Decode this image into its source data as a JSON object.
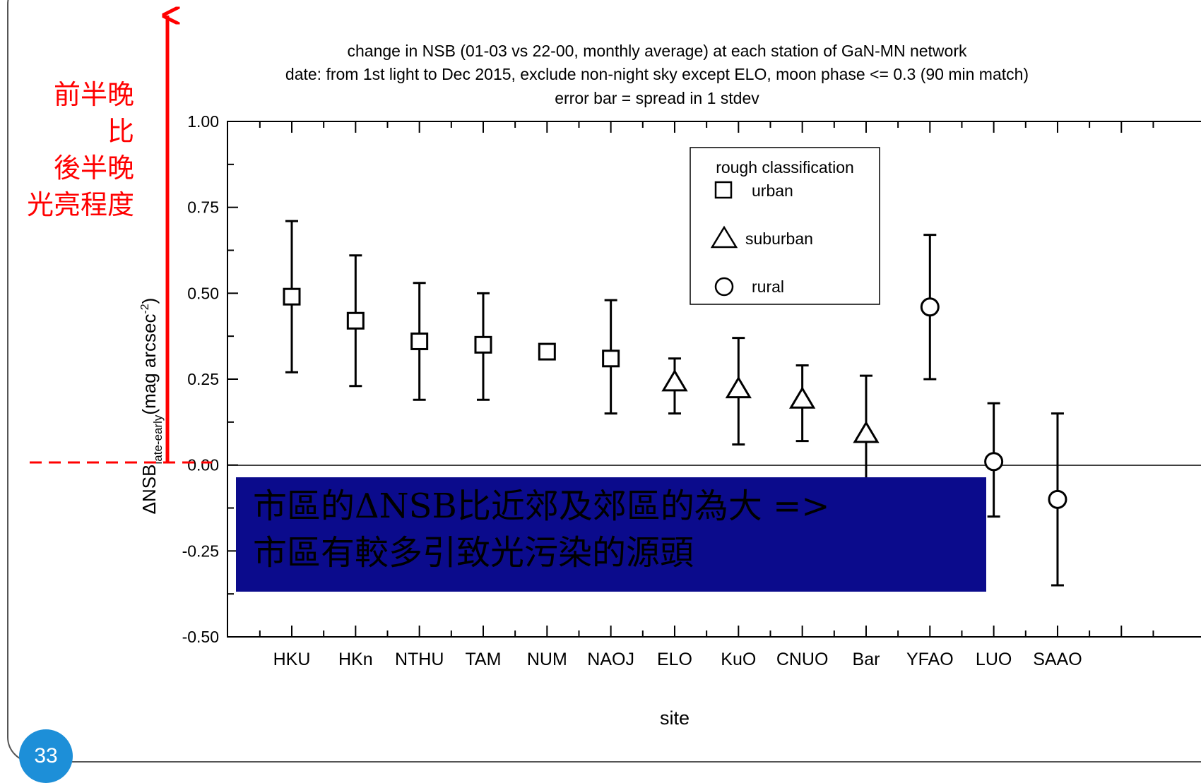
{
  "page": {
    "number": "33"
  },
  "annotation": {
    "lines": [
      "前半晚",
      "比",
      "後半晚",
      "光亮程度"
    ]
  },
  "callout": {
    "line1": "市區的ΔNSB比近郊及郊區的為大 =>",
    "line2": "市區有較多引致光污染的源頭"
  },
  "colors": {
    "annotation_red": "#ff0000",
    "callout_bg": "#0b0b8c",
    "badge_blue": "#1d8fd8"
  },
  "chart_data": {
    "type": "scatter",
    "title": [
      "change in NSB (01-03 vs 22-00, monthly average) at each station of GaN-MN network",
      "date: from 1st light to Dec 2015, exclude non-night sky except ELO, moon phase <= 0.3 (90 min match)",
      "error bar = spread in 1 stdev"
    ],
    "xlabel": "site",
    "ylabel": {
      "prefix": "ΔNSB",
      "subscript": "late-early",
      "unit_open": "(mag arcsec",
      "unit_sup": "-2",
      "unit_close": ")"
    },
    "ylim": [
      -0.5,
      1.0
    ],
    "yticks": [
      "1.00",
      "0.75",
      "0.50",
      "0.25",
      "0.00",
      "-0.25",
      "-0.50"
    ],
    "ytick_values": [
      1.0,
      0.75,
      0.5,
      0.25,
      0.0,
      -0.25,
      -0.5
    ],
    "zero_line": true,
    "legend": {
      "title": "rough classification",
      "entries": [
        {
          "label": "urban",
          "marker": "square"
        },
        {
          "label": "suburban",
          "marker": "triangle"
        },
        {
          "label": "rural",
          "marker": "circle"
        }
      ]
    },
    "points": [
      {
        "site": "HKU",
        "value": 0.49,
        "err_low": 0.27,
        "err_high": 0.71,
        "class": "urban"
      },
      {
        "site": "HKn",
        "value": 0.42,
        "err_low": 0.23,
        "err_high": 0.61,
        "class": "urban"
      },
      {
        "site": "NTHU",
        "value": 0.36,
        "err_low": 0.19,
        "err_high": 0.53,
        "class": "urban"
      },
      {
        "site": "TAM",
        "value": 0.35,
        "err_low": 0.19,
        "err_high": 0.5,
        "class": "urban"
      },
      {
        "site": "NUM",
        "value": 0.33,
        "err_low": null,
        "err_high": null,
        "class": "urban"
      },
      {
        "site": "NAOJ",
        "value": 0.31,
        "err_low": 0.15,
        "err_high": 0.48,
        "class": "urban"
      },
      {
        "site": "ELO",
        "value": 0.24,
        "err_low": 0.15,
        "err_high": 0.31,
        "class": "suburban"
      },
      {
        "site": "KuO",
        "value": 0.22,
        "err_low": 0.06,
        "err_high": 0.37,
        "class": "suburban"
      },
      {
        "site": "CNUO",
        "value": 0.19,
        "err_low": 0.07,
        "err_high": 0.29,
        "class": "suburban"
      },
      {
        "site": "Bar",
        "value": 0.09,
        "err_low": -0.08,
        "err_high": 0.26,
        "class": "suburban"
      },
      {
        "site": "YFAO",
        "value": 0.46,
        "err_low": 0.25,
        "err_high": 0.67,
        "class": "rural"
      },
      {
        "site": "LUO",
        "value": 0.01,
        "err_low": -0.15,
        "err_high": 0.18,
        "class": "rural"
      },
      {
        "site": "SAAO",
        "value": -0.1,
        "err_low": -0.35,
        "err_high": 0.15,
        "class": "rural"
      }
    ]
  }
}
